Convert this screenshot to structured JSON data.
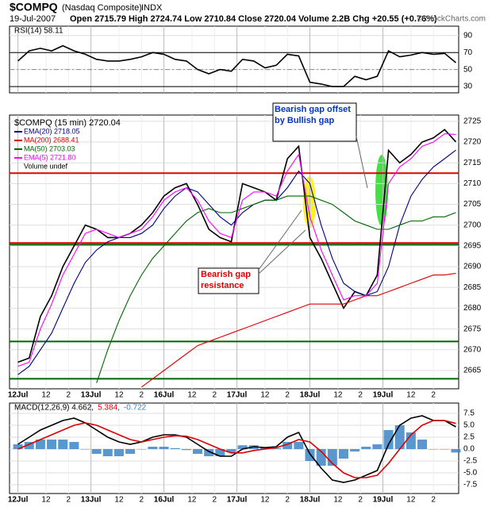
{
  "header": {
    "title": "$COMPQ",
    "subtitle": "(Nasdaq Composite)",
    "exchange": "INDX",
    "date": "19-Jul-2007",
    "quote": "Open 2715.79  High 2724.74  Low 2710.84  Close 2720.04  Volume 2.2B  Chg +20.55 (+0.76%)",
    "watermark": "© StockCharts.com"
  },
  "chart_data": [
    {
      "type": "line",
      "name": "RSI(14) 58.11",
      "xlim": [
        -3,
        157
      ],
      "ylim": [
        22.6,
        101
      ],
      "yticks": [
        30,
        50,
        70,
        90
      ],
      "x": [
        0,
        4,
        8,
        12,
        16,
        20,
        24,
        28,
        32,
        36,
        40,
        44,
        48,
        52,
        56,
        60,
        64,
        68,
        72,
        76,
        80,
        84,
        88,
        92,
        96,
        100,
        104,
        108,
        112,
        116,
        120,
        124,
        128,
        132,
        136,
        140,
        144,
        148,
        152,
        156
      ],
      "series": [
        {
          "name": "RSI(14) 58.11",
          "color": "#000000",
          "values": [
            60,
            72,
            75,
            72,
            78,
            72,
            68,
            62,
            60,
            60,
            62,
            65,
            70,
            68,
            62,
            60,
            50,
            45,
            50,
            48,
            62,
            60,
            52,
            55,
            68,
            66,
            35,
            33,
            30,
            30,
            42,
            38,
            42,
            72,
            65,
            67,
            70,
            68,
            69,
            58.11
          ]
        }
      ],
      "hlines": [
        {
          "value": 70,
          "color": "#000000"
        },
        {
          "value": 50,
          "color": "#888888"
        },
        {
          "value": 30,
          "color": "#000000"
        }
      ]
    },
    {
      "type": "line",
      "name": "$COMPQ (15 min) 2720.04",
      "xlim": [
        -3,
        157
      ],
      "ylim": [
        2660.6,
        2726.5
      ],
      "yticks": [
        2665,
        2670,
        2675,
        2680,
        2685,
        2690,
        2695,
        2700,
        2705,
        2710,
        2715,
        2720,
        2725
      ],
      "xticks": [
        {
          "value": 0,
          "label": "12Jul"
        },
        {
          "value": 10,
          "label": "12"
        },
        {
          "value": 18,
          "label": "2"
        },
        {
          "value": 26,
          "label": "13Jul"
        },
        {
          "value": 36,
          "label": "12"
        },
        {
          "value": 44,
          "label": "2"
        },
        {
          "value": 52,
          "label": "16Jul"
        },
        {
          "value": 62,
          "label": "12"
        },
        {
          "value": 70,
          "label": "2"
        },
        {
          "value": 78,
          "label": "17Jul"
        },
        {
          "value": 88,
          "label": "12"
        },
        {
          "value": 96,
          "label": "2"
        },
        {
          "value": 104,
          "label": "18Jul"
        },
        {
          "value": 114,
          "label": "12"
        },
        {
          "value": 122,
          "label": "2"
        },
        {
          "value": 130,
          "label": "19Jul"
        },
        {
          "value": 140,
          "label": "12"
        },
        {
          "value": 148,
          "label": "2"
        }
      ],
      "x": [
        0,
        4,
        8,
        12,
        16,
        20,
        24,
        28,
        32,
        36,
        40,
        44,
        48,
        52,
        56,
        60,
        64,
        68,
        72,
        76,
        80,
        84,
        88,
        92,
        96,
        100,
        104,
        108,
        112,
        116,
        120,
        124,
        128,
        132,
        136,
        140,
        144,
        148,
        152,
        156
      ],
      "series": [
        {
          "name": "$COMPQ (15 min) 2720.04",
          "color": "#000000",
          "values": [
            2667,
            2668,
            2678,
            2683,
            2690,
            2695,
            2700,
            2699,
            2697,
            2697,
            2698,
            2700,
            2703,
            2707,
            2709,
            2710,
            2705,
            2699,
            2697,
            2696,
            2710,
            2709,
            2708,
            2706,
            2716,
            2719,
            2697,
            2692,
            2686,
            2680,
            2684,
            2683,
            2688,
            2718,
            2715,
            2717,
            2720,
            2721,
            2723,
            2720.04
          ]
        },
        {
          "name": "EMA(20) 2718.05",
          "color": "#000080",
          "values": [
            2664,
            2666,
            2670,
            2674,
            2680,
            2686,
            2691,
            2694,
            2696,
            2697,
            2697,
            2698,
            2700,
            2704,
            2707,
            2709,
            2708,
            2705,
            2702,
            2700,
            2703,
            2705,
            2706,
            2706,
            2709,
            2713,
            2710,
            2700,
            2692,
            2686,
            2684,
            2683,
            2684,
            2690,
            2700,
            2707,
            2711,
            2714,
            2716,
            2718.05
          ]
        },
        {
          "name": "MA(200) 2688.41",
          "color": "#dd0000",
          "values": [
            null,
            null,
            null,
            null,
            null,
            null,
            null,
            null,
            null,
            null,
            null,
            2661,
            2663,
            2665,
            2667,
            2669,
            2671,
            2672,
            2673,
            2674,
            2675,
            2676,
            2677,
            2678,
            2679,
            2680,
            2681,
            2681,
            2681,
            2681,
            2682,
            2683,
            2683,
            2684,
            2685,
            2686,
            2687,
            2688,
            2688,
            2688.41
          ]
        },
        {
          "name": "MA(50) 2703.03",
          "color": "#006600",
          "values": [
            null,
            null,
            null,
            null,
            null,
            null,
            null,
            2662,
            2670,
            2677,
            2683,
            2688,
            2692,
            2695,
            2698,
            2701,
            2703,
            2704,
            2703,
            2703,
            2704,
            2705,
            2706,
            2706,
            2707,
            2707,
            2707,
            2706,
            2705,
            2703,
            2701,
            2700,
            2699,
            2699,
            2700,
            2701,
            2701,
            2702,
            2702,
            2703.03
          ]
        },
        {
          "name": "EMA(5) 2721.80",
          "color": "#ff00ff",
          "values": [
            2666,
            2667,
            2675,
            2681,
            2688,
            2693,
            2698,
            2699,
            2698,
            2697,
            2698,
            2699,
            2702,
            2706,
            2708,
            2709,
            2706,
            2701,
            2698,
            2697,
            2706,
            2708,
            2708,
            2707,
            2713,
            2717,
            2702,
            2694,
            2688,
            2682,
            2683,
            2683,
            2686,
            2710,
            2714,
            2716,
            2719,
            2720,
            2722,
            2721.8
          ]
        }
      ],
      "legend_extra": "Volume undef",
      "hlines": [
        {
          "value": 2712.5,
          "color": "#dd0000"
        },
        {
          "value": 2695.7,
          "color": "#dd0000"
        },
        {
          "value": 2695.3,
          "color": "#006600"
        },
        {
          "value": 2672,
          "color": "#006600"
        },
        {
          "value": 2663,
          "color": "#006600"
        }
      ],
      "annotations": [
        "Bearish gap offset by Bullish gap",
        "Bearish gap resistance"
      ]
    },
    {
      "type": "macd",
      "xlim": [
        -3,
        157
      ],
      "ylim": [
        -9.33,
        9.67
      ],
      "yticks": [
        7.5,
        {
          "value": 5,
          "label": "5.0"
        },
        2.5,
        {
          "value": 0,
          "label": "0.0"
        },
        -2.5,
        {
          "value": -5,
          "label": "-5.0"
        },
        -7.5
      ],
      "x": [
        0,
        4,
        8,
        12,
        16,
        20,
        24,
        28,
        32,
        36,
        40,
        44,
        48,
        52,
        56,
        60,
        64,
        68,
        72,
        76,
        80,
        84,
        88,
        92,
        96,
        100,
        104,
        108,
        112,
        116,
        120,
        124,
        128,
        132,
        136,
        140,
        144,
        148,
        152,
        156
      ],
      "series": [
        {
          "name": "MACD(12,26,9) 4.662,",
          "color": "#000000",
          "values": [
            1,
            2.5,
            4,
            5,
            6,
            6.5,
            5.5,
            4,
            2.5,
            1.5,
            1,
            1.5,
            2.5,
            3,
            3,
            2.5,
            1,
            -0.5,
            -1.5,
            -1.5,
            0,
            0.5,
            0.3,
            0.5,
            2.5,
            3.5,
            -1,
            -4,
            -6.5,
            -7,
            -6.5,
            -5.5,
            -4.5,
            1,
            5,
            6.5,
            7,
            6,
            6,
            4.662
          ]
        },
        {
          "name": "5.384,",
          "color": "#dd0000",
          "values": [
            0,
            1,
            2,
            3,
            4,
            5,
            5.5,
            5,
            4,
            3,
            2,
            1.5,
            2,
            2.5,
            2.8,
            2.7,
            2,
            1,
            0,
            -0.8,
            -0.8,
            -0.3,
            0,
            0.3,
            1,
            2,
            1.5,
            -0.5,
            -3,
            -5,
            -6,
            -6,
            -5.5,
            -3,
            0,
            3,
            5,
            6,
            6,
            5.384
          ]
        },
        {
          "name": "-0.722",
          "color": "#3d85c6",
          "bars": true,
          "values": [
            1,
            1.5,
            2,
            2,
            2,
            1.5,
            0,
            -1,
            -1.5,
            -1.5,
            -1,
            0,
            0.5,
            0.5,
            0.2,
            -0.2,
            -1,
            -1.5,
            -1.5,
            -0.7,
            0.8,
            0.8,
            0.3,
            0.2,
            1.5,
            1.5,
            -2.5,
            -3.5,
            -3.5,
            -2,
            -0.5,
            0.5,
            1,
            4,
            5,
            3.5,
            2,
            0,
            0,
            -0.722
          ]
        }
      ]
    }
  ]
}
